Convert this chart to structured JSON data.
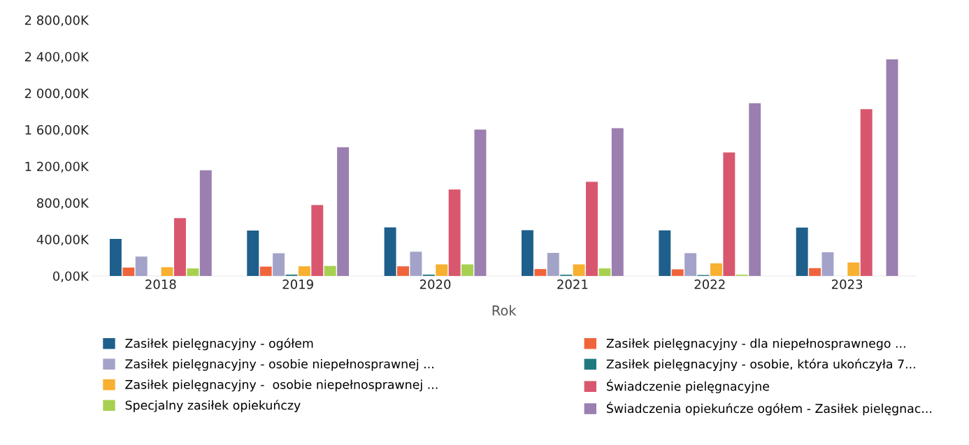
{
  "chart_data": {
    "type": "bar",
    "xlabel": "Rok",
    "categories": [
      "2018",
      "2019",
      "2020",
      "2021",
      "2022",
      "2023"
    ],
    "ylim": [
      0,
      2800
    ],
    "yticks": [
      {
        "value": 0,
        "label": "0,00K"
      },
      {
        "value": 400,
        "label": "400,00K"
      },
      {
        "value": 800,
        "label": "800,00K"
      },
      {
        "value": 1200,
        "label": "1 200,00K"
      },
      {
        "value": 1600,
        "label": "1 600,00K"
      },
      {
        "value": 2000,
        "label": "2 000,00K"
      },
      {
        "value": 2400,
        "label": "2 400,00K"
      },
      {
        "value": 2800,
        "label": "2 800,00K"
      }
    ],
    "grid": false,
    "legend": "bottom",
    "series": [
      {
        "name": "Zasiłek pielęgnacyjny - ogółem",
        "color": "#1f5f8b",
        "values": [
          405,
          496,
          530,
          501,
          498,
          529
        ]
      },
      {
        "name": "Zasiłek pielęgnacyjny - dla niepełnosprawnego ...",
        "color": "#f0643c",
        "values": [
          92,
          102,
          105,
          75,
          72,
          85
        ]
      },
      {
        "name": "Zasiłek pielęgnacyjny - osobie niepełnosprawnej ...",
        "color": "#a3a3c9",
        "values": [
          211,
          248,
          265,
          252,
          249,
          259
        ]
      },
      {
        "name": "Zasiłek pielęgnacyjny - osobie, która ukończyła 7...",
        "color": "#1f7a80",
        "values": [
          0,
          14,
          14,
          13,
          10,
          0
        ]
      },
      {
        "name": "Zasiłek pielęgnacyjny -  osobie niepełnosprawnej ...",
        "color": "#f8b030",
        "values": [
          95,
          105,
          126,
          126,
          137,
          147
        ]
      },
      {
        "name": "Świadczenie pielęgnacyjne",
        "color": "#d9576e",
        "values": [
          632,
          775,
          945,
          1030,
          1351,
          1825
        ]
      },
      {
        "name": "Specjalny zasiłek opiekuńczy",
        "color": "#a8d050",
        "values": [
          82,
          109,
          126,
          82,
          13,
          0
        ]
      },
      {
        "name": "Świadczenia opiekuńcze ogółem - Zasiłek pielęgnac...",
        "color": "#9b7fb0",
        "values": [
          1156,
          1408,
          1601,
          1616,
          1889,
          2370
        ]
      }
    ]
  }
}
